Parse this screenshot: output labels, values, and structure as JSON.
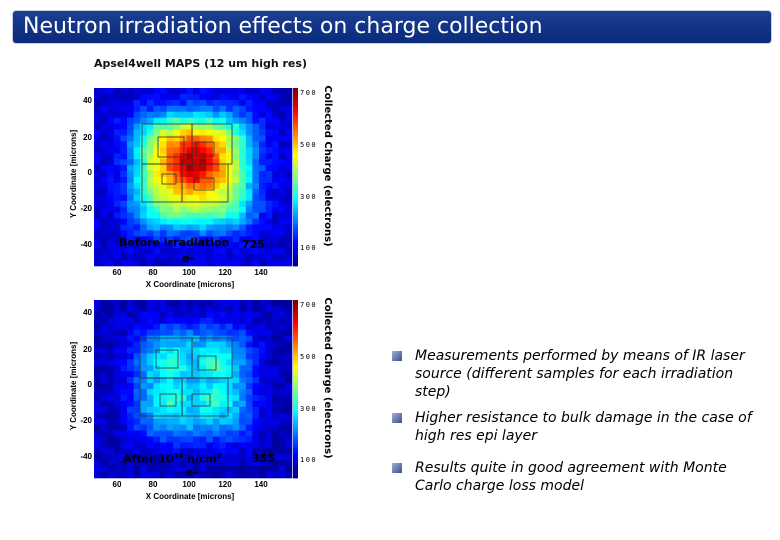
{
  "title": "Neutron irradiation effects on charge collection",
  "subtitle": "Apsel4well MAPS (12 um high res)",
  "maps": [
    {
      "caption": "Before irradiation",
      "caption_sub": "e-",
      "value": "725",
      "peak": 0.85,
      "y_label": "Y Coordinate [microns]",
      "x_label": "X Coordinate [microns]",
      "colorbar_label": "Collected Charge (electrons)",
      "y_ticks": [
        "40",
        "20",
        "0",
        "-20",
        "-40"
      ],
      "x_ticks": [
        "60",
        "80",
        "100",
        "120",
        "140"
      ],
      "cbar_ticks": [
        "700",
        "500",
        "300",
        "100"
      ]
    },
    {
      "caption": "After 10",
      "caption_sup": "14",
      "caption_tail": " n/cm",
      "caption_sup2": "2",
      "caption_sub": "e-",
      "value": "355",
      "peak": 0.38,
      "y_label": "Y Coordinate [microns]",
      "x_label": "X Coordinate [microns]",
      "colorbar_label": "Collected Charge (electrons)",
      "y_ticks": [
        "40",
        "20",
        "0",
        "-20",
        "-40"
      ],
      "x_ticks": [
        "60",
        "80",
        "100",
        "120",
        "140"
      ],
      "cbar_ticks": [
        "700",
        "500",
        "300",
        "100"
      ]
    }
  ],
  "bullets": [
    "Measurements performed by means of IR laser source (different samples for each irradiation step)",
    "Higher resistance to bulk damage in the case of high res epi layer",
    "Results quite in good agreement with Monte Carlo charge loss model"
  ],
  "colors": {
    "title_bg": "#0a2a7a",
    "title_text": "#ffffff",
    "bullet_icon": "#3a4f8c"
  }
}
